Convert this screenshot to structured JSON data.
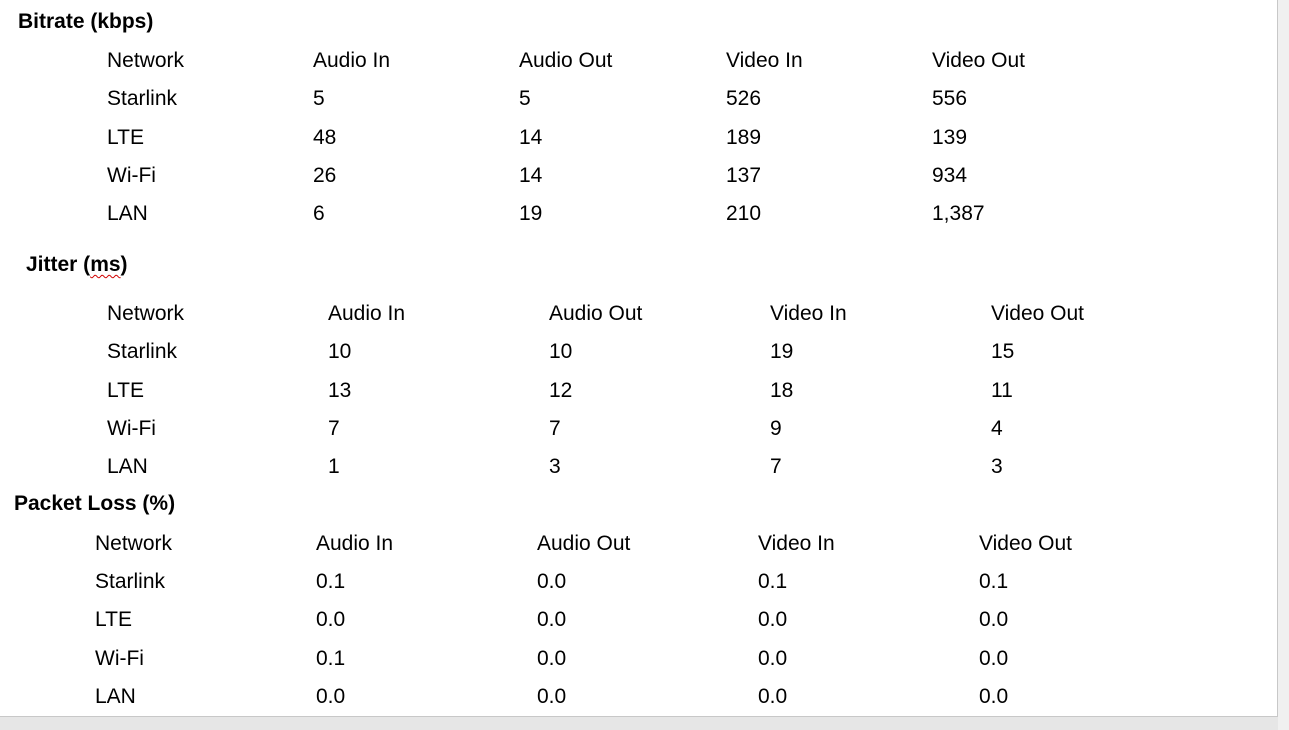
{
  "sections": [
    {
      "title_main": "Bitrate (kbps)",
      "headers": [
        "Network",
        "Audio In",
        "Audio Out",
        "Video In",
        "Video Out"
      ],
      "rows": [
        [
          "Starlink",
          "5",
          "5",
          "526",
          "556"
        ],
        [
          "LTE",
          "48",
          "14",
          "189",
          "139"
        ],
        [
          "Wi-Fi",
          "26",
          "14",
          "137",
          "934"
        ],
        [
          "LAN",
          "6",
          "19",
          "210",
          "1,387"
        ]
      ]
    },
    {
      "title_pre": "Jitter (",
      "title_sq": "ms",
      "title_post": ")",
      "headers": [
        "Network",
        "Audio In",
        "Audio Out",
        "Video In",
        "Video Out"
      ],
      "rows": [
        [
          "Starlink",
          "10",
          "10",
          "19",
          "15"
        ],
        [
          "LTE",
          "13",
          "12",
          "18",
          "11"
        ],
        [
          "Wi-Fi",
          "7",
          "7",
          "9",
          "4"
        ],
        [
          "LAN",
          "1",
          "3",
          "7",
          "3"
        ]
      ]
    },
    {
      "title_main": "Packet Loss (%)",
      "headers": [
        "Network",
        "Audio In",
        "Audio Out",
        "Video In",
        "Video Out"
      ],
      "rows": [
        [
          "Starlink",
          "0.1",
          "0.0",
          "0.1",
          "0.1"
        ],
        [
          "LTE",
          "0.0",
          "0.0",
          "0.0",
          "0.0"
        ],
        [
          "Wi-Fi",
          "0.1",
          "0.0",
          "0.0",
          "0.0"
        ],
        [
          "LAN",
          "0.0",
          "0.0",
          "0.0",
          "0.0"
        ]
      ]
    }
  ]
}
